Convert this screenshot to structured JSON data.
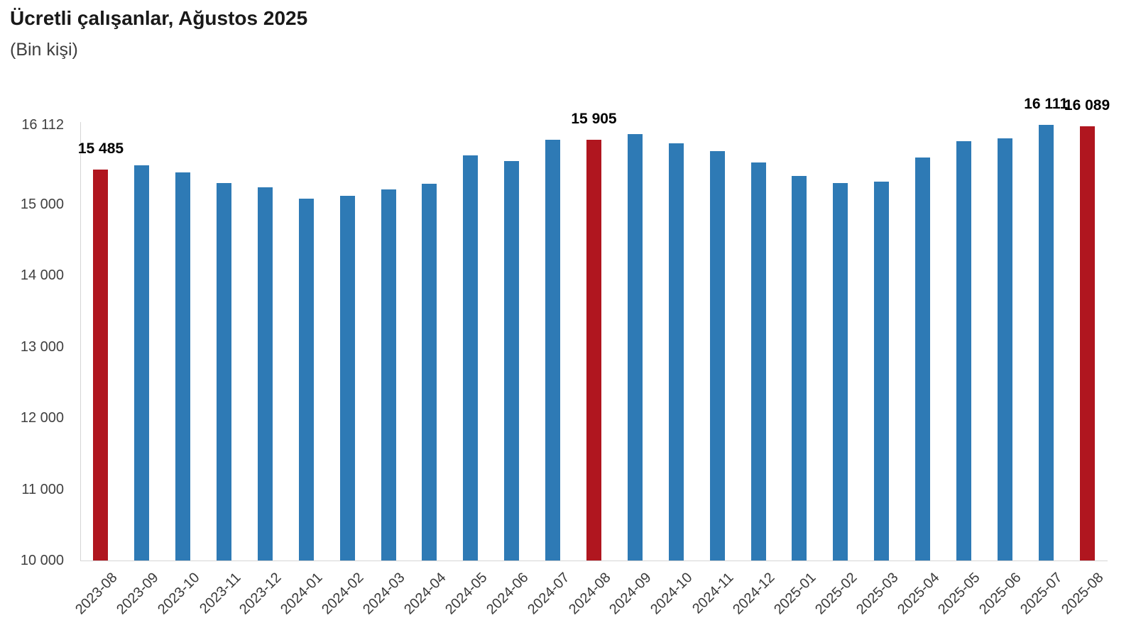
{
  "header": {
    "title": "Ücretli çalışanlar, Ağustos 2025",
    "subtitle": "(Bin kişi)"
  },
  "chart_data": {
    "type": "bar",
    "title": "Ücretli çalışanlar, Ağustos 2025",
    "unit_label": "(Bin kişi)",
    "xlabel": "",
    "ylabel": "Bin kişi",
    "ylim": [
      10000,
      16112
    ],
    "grid": false,
    "legend": null,
    "categories": [
      "2023-08",
      "2023-09",
      "2023-10",
      "2023-11",
      "2023-12",
      "2024-01",
      "2024-02",
      "2024-03",
      "2024-04",
      "2024-05",
      "2024-06",
      "2024-07",
      "2024-08",
      "2024-09",
      "2024-10",
      "2024-11",
      "2024-12",
      "2025-01",
      "2025-02",
      "2025-03",
      "2025-04",
      "2025-05",
      "2025-06",
      "2025-07",
      "2025-08"
    ],
    "values": [
      15485,
      15545,
      15445,
      15300,
      15240,
      15075,
      15120,
      15210,
      15285,
      15685,
      15600,
      15900,
      15905,
      15980,
      15850,
      15740,
      15580,
      15400,
      15295,
      15315,
      15655,
      15880,
      15925,
      16111,
      16089
    ],
    "highlighted_indices": [
      0,
      12,
      24
    ],
    "data_labels": [
      {
        "index": 0,
        "text": "15 485"
      },
      {
        "index": 12,
        "text": "15 905"
      },
      {
        "index": 23,
        "text": "16 111"
      },
      {
        "index": 24,
        "text": "16 089"
      }
    ],
    "yticks": [
      {
        "value": 16112,
        "label": "16 112"
      },
      {
        "value": 15000,
        "label": "15 000"
      },
      {
        "value": 14000,
        "label": "14 000"
      },
      {
        "value": 13000,
        "label": "13 000"
      },
      {
        "value": 12000,
        "label": "12 000"
      },
      {
        "value": 11000,
        "label": "11 000"
      },
      {
        "value": 10000,
        "label": "10 000"
      }
    ],
    "colors": {
      "bar_default": "#2e7ab5",
      "bar_highlight": "#b0161f",
      "axis_line": "#d6d6d6",
      "tick_text": "#404040",
      "title_text": "#191919"
    }
  }
}
